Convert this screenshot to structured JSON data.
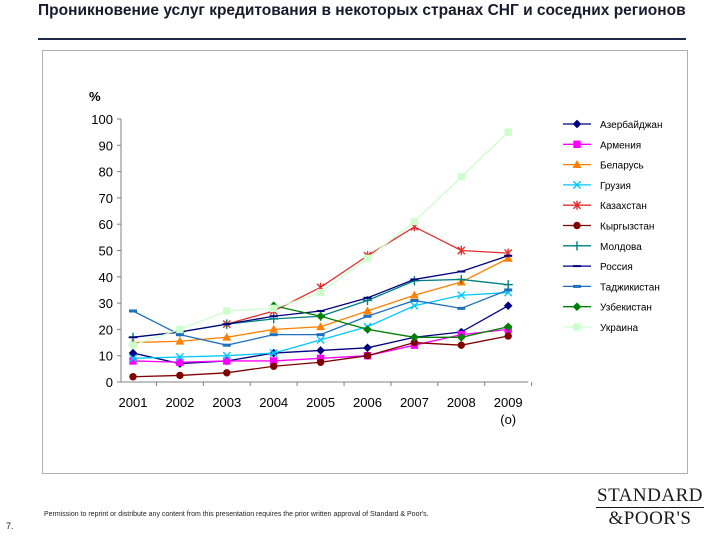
{
  "header": {
    "title": "Проникновение услуг кредитования в некоторых странах СНГ и соседних регионов"
  },
  "footer": {
    "permission": "Permission to reprint or distribute any content from this presentation requires the prior written approval of Standard & Poor's.",
    "page_number": "7.",
    "logo_line1": "STANDARD",
    "logo_line2": "&POOR'S"
  },
  "chart_data": {
    "type": "line",
    "title": "",
    "ylabel": "%",
    "xlabel": "",
    "ylim": [
      0,
      100
    ],
    "yticks": [
      0,
      10,
      20,
      30,
      40,
      50,
      60,
      70,
      80,
      90,
      100
    ],
    "categories": [
      "2001",
      "2002",
      "2003",
      "2004",
      "2005",
      "2006",
      "2007",
      "2008",
      "2009"
    ],
    "x_sublabel": "(о)",
    "grid": false,
    "legend": "right",
    "series": [
      {
        "name": "Азербайджан",
        "color": "#000080",
        "marker": "diamond",
        "values": [
          11,
          7,
          8,
          11,
          12,
          13,
          17,
          19,
          29
        ]
      },
      {
        "name": "Армения",
        "color": "#ff00ff",
        "marker": "square",
        "values": [
          8,
          7.5,
          8,
          8,
          9,
          10,
          14,
          18,
          20
        ]
      },
      {
        "name": "Беларусь",
        "color": "#ff8000",
        "marker": "triangle",
        "values": [
          15,
          15.5,
          17,
          20,
          21,
          27,
          33,
          38,
          47
        ]
      },
      {
        "name": "Грузия",
        "color": "#00c8ff",
        "marker": "x",
        "values": [
          9,
          9.5,
          10,
          11,
          16,
          21,
          29,
          33,
          34
        ]
      },
      {
        "name": "Казахстан",
        "color": "#e03030",
        "marker": "star",
        "values": [
          null,
          null,
          22,
          27,
          36,
          48,
          59,
          50,
          49
        ]
      },
      {
        "name": "Кыргызстан",
        "color": "#800000",
        "marker": "circle",
        "values": [
          2,
          2.5,
          3.5,
          6,
          7.5,
          10,
          15,
          14,
          17.5
        ]
      },
      {
        "name": "Молдова",
        "color": "#008080",
        "marker": "plus",
        "values": [
          17,
          19,
          22,
          24,
          25,
          31,
          38.5,
          39,
          37
        ]
      },
      {
        "name": "Россия",
        "color": "#000080",
        "marker": "dash",
        "values": [
          17,
          19,
          22,
          25,
          27,
          32,
          39,
          42,
          48
        ]
      },
      {
        "name": "Таджикистан",
        "color": "#1f6fbf",
        "marker": "hbar",
        "values": [
          27,
          18,
          14,
          18,
          18,
          25,
          31,
          28,
          35
        ]
      },
      {
        "name": "Узбекистан",
        "color": "#008000",
        "marker": "diamond",
        "values": [
          null,
          null,
          null,
          29,
          25,
          20,
          17,
          17,
          21
        ]
      },
      {
        "name": "Украина",
        "color": "#ccffcc",
        "marker": "square",
        "values": [
          14,
          20,
          27,
          28,
          34,
          47,
          61,
          78,
          95
        ]
      }
    ]
  }
}
